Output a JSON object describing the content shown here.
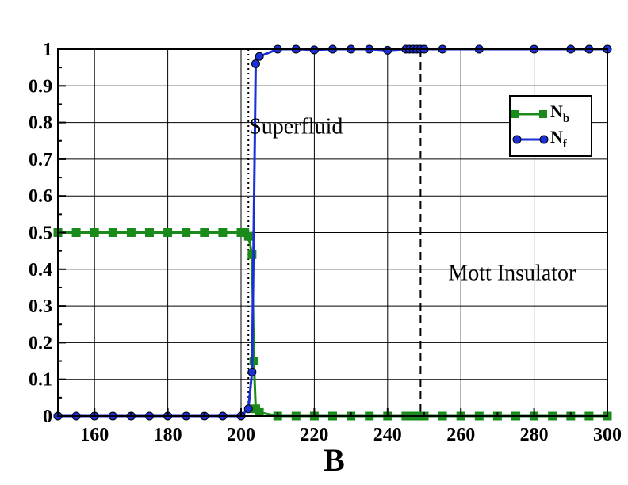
{
  "chart_data": {
    "type": "line",
    "xlabel": "B",
    "ylabel": "",
    "xlim": [
      150,
      300
    ],
    "ylim": [
      0,
      1
    ],
    "x_ticks": [
      "160",
      "180",
      "200",
      "220",
      "240",
      "260",
      "280",
      "300"
    ],
    "x_tick_values": [
      160,
      180,
      200,
      220,
      240,
      260,
      280,
      300
    ],
    "y_ticks": [
      "0",
      "0.1",
      "0.2",
      "0.3",
      "0.4",
      "0.5",
      "0.6",
      "0.7",
      "0.8",
      "0.9",
      "1"
    ],
    "y_tick_values": [
      0,
      0.1,
      0.2,
      0.3,
      0.4,
      0.5,
      0.6,
      0.7,
      0.8,
      0.9,
      1
    ],
    "grid": true,
    "legend_position": "top-right",
    "series": [
      {
        "name": "N_b",
        "label_main": "N",
        "label_sub": "b",
        "color": "#1a8a1a",
        "marker": "square",
        "x": [
          150,
          155,
          160,
          165,
          170,
          175,
          180,
          185,
          190,
          195,
          200,
          201,
          202,
          203,
          203.5,
          204,
          205,
          210,
          215,
          220,
          225,
          230,
          235,
          240,
          245,
          246,
          247,
          248,
          249,
          250,
          255,
          260,
          265,
          270,
          275,
          280,
          285,
          290,
          295,
          300
        ],
        "values": [
          0.5,
          0.5,
          0.5,
          0.5,
          0.5,
          0.5,
          0.5,
          0.5,
          0.5,
          0.5,
          0.5,
          0.5,
          0.49,
          0.44,
          0.15,
          0.02,
          0.01,
          0,
          0,
          0,
          0,
          0,
          0,
          0,
          0,
          0,
          0,
          0,
          0,
          0,
          0,
          0,
          0,
          0,
          0,
          0,
          0,
          0,
          0,
          0
        ]
      },
      {
        "name": "N_f",
        "label_main": "N",
        "label_sub": "f",
        "color": "#1a2fd6",
        "marker": "circle",
        "x": [
          150,
          155,
          160,
          165,
          170,
          175,
          180,
          185,
          190,
          195,
          200,
          202,
          203,
          204,
          205,
          210,
          215,
          220,
          225,
          230,
          235,
          240,
          245,
          246,
          247,
          248,
          249,
          250,
          255,
          265,
          280,
          290,
          295,
          300
        ],
        "values": [
          0,
          0,
          0,
          0,
          0,
          0,
          0,
          0,
          0,
          0,
          0,
          0.02,
          0.12,
          0.96,
          0.98,
          1.0,
          1.0,
          0.998,
          1.0,
          1.0,
          1.0,
          0.997,
          1.0,
          1.0,
          1.0,
          1.0,
          1.0,
          1.0,
          1.0,
          1.0,
          1.0,
          1.0,
          1.0,
          1.0
        ]
      }
    ],
    "vlines": [
      {
        "x": 202,
        "style": "dotted"
      },
      {
        "x": 249,
        "style": "dashed"
      }
    ],
    "annotations": [
      {
        "text": "Superfluid",
        "x": 215,
        "y": 0.77
      },
      {
        "text": "Mott Insulator",
        "x": 274,
        "y": 0.37
      }
    ]
  }
}
